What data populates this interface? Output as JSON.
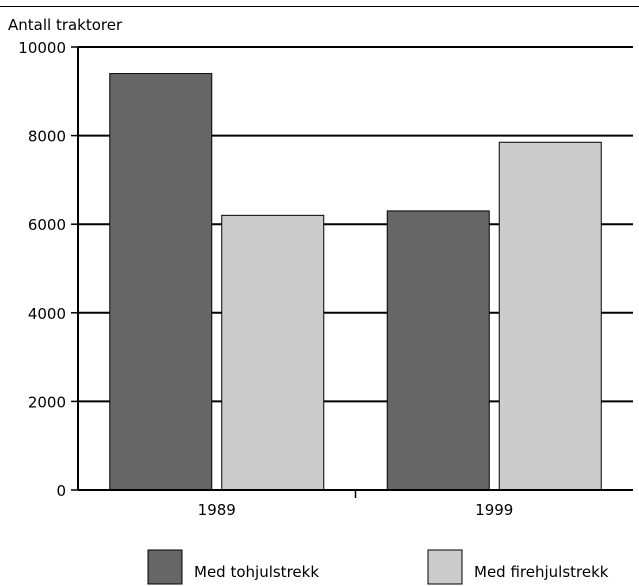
{
  "chart_data": {
    "type": "bar",
    "title": "",
    "ylabel": "Antall traktorer",
    "xlabel": "",
    "categories": [
      "1989",
      "1999"
    ],
    "ylim": [
      0,
      10000
    ],
    "yticks": [
      0,
      2000,
      4000,
      6000,
      8000,
      10000
    ],
    "grid": true,
    "legend_position": "bottom",
    "series": [
      {
        "name": "Med tohjulstrekk",
        "color": "#666666",
        "values": [
          9400,
          6300
        ]
      },
      {
        "name": "Med firehjulstrekk",
        "color": "#cccccc",
        "values": [
          6200,
          7850
        ]
      }
    ]
  }
}
